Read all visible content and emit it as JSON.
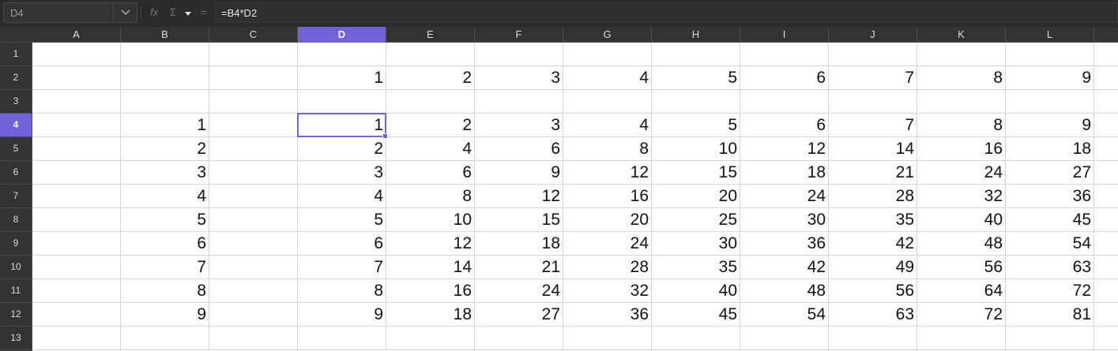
{
  "name_box": {
    "value": "D4",
    "dropdown_icon": "chevron-down-icon"
  },
  "formula_bar": {
    "fx_icon": "function-wizard-icon",
    "sum_icon": "sum-icon",
    "equals_icon": "equals-icon",
    "fx_label": "fx",
    "sum_label": "Σ",
    "eq_label": "=",
    "formula": "=B4*D2"
  },
  "accent_color": "#7064d8",
  "columns": [
    "A",
    "B",
    "C",
    "D",
    "E",
    "F",
    "G",
    "H",
    "I",
    "J",
    "K",
    "L"
  ],
  "selected_column": "D",
  "rows": [
    "1",
    "2",
    "3",
    "4",
    "5",
    "6",
    "7",
    "8",
    "9",
    "10",
    "11",
    "12",
    "13"
  ],
  "selected_row": "4",
  "grid": {
    "r1": [
      "",
      "",
      "",
      "",
      "",
      "",
      "",
      "",
      "",
      "",
      "",
      ""
    ],
    "r2": [
      "",
      "",
      "",
      "1",
      "2",
      "3",
      "4",
      "5",
      "6",
      "7",
      "8",
      "9"
    ],
    "r3": [
      "",
      "",
      "",
      "",
      "",
      "",
      "",
      "",
      "",
      "",
      "",
      ""
    ],
    "r4": [
      "",
      "1",
      "",
      "1",
      "2",
      "3",
      "4",
      "5",
      "6",
      "7",
      "8",
      "9"
    ],
    "r5": [
      "",
      "2",
      "",
      "2",
      "4",
      "6",
      "8",
      "10",
      "12",
      "14",
      "16",
      "18"
    ],
    "r6": [
      "",
      "3",
      "",
      "3",
      "6",
      "9",
      "12",
      "15",
      "18",
      "21",
      "24",
      "27"
    ],
    "r7": [
      "",
      "4",
      "",
      "4",
      "8",
      "12",
      "16",
      "20",
      "24",
      "28",
      "32",
      "36"
    ],
    "r8": [
      "",
      "5",
      "",
      "5",
      "10",
      "15",
      "20",
      "25",
      "30",
      "35",
      "40",
      "45"
    ],
    "r9": [
      "",
      "6",
      "",
      "6",
      "12",
      "18",
      "24",
      "30",
      "36",
      "42",
      "48",
      "54"
    ],
    "r10": [
      "",
      "7",
      "",
      "7",
      "14",
      "21",
      "28",
      "35",
      "42",
      "49",
      "56",
      "63"
    ],
    "r11": [
      "",
      "8",
      "",
      "8",
      "16",
      "24",
      "32",
      "40",
      "48",
      "56",
      "64",
      "72"
    ],
    "r12": [
      "",
      "9",
      "",
      "9",
      "18",
      "27",
      "36",
      "45",
      "54",
      "63",
      "72",
      "81"
    ],
    "r13": [
      "",
      "",
      "",
      "",
      "",
      "",
      "",
      "",
      "",
      "",
      "",
      ""
    ]
  }
}
